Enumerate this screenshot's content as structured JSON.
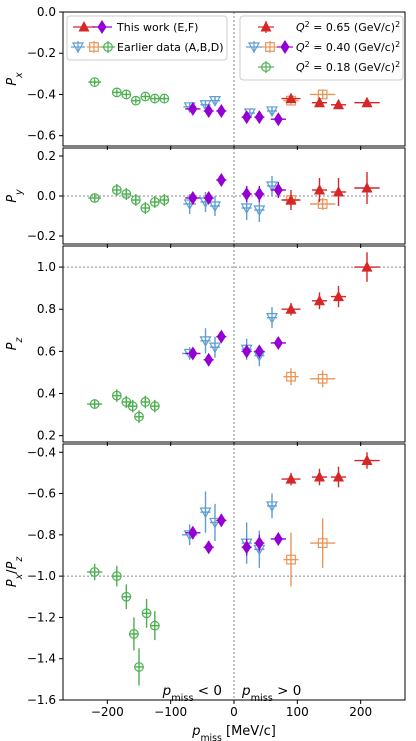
{
  "chart_data": {
    "type": "scatter",
    "shared_x": {
      "label": "p",
      "label_sub": "miss",
      "label_unit": " [MeV/c]",
      "lim": [
        -270,
        270
      ],
      "ticks": [
        -200,
        -100,
        0,
        100,
        200
      ],
      "tick_labels": [
        "−200",
        "−100",
        "0",
        "100",
        "200"
      ]
    },
    "colors": {
      "this_work": "#9400d3",
      "q065": "#d62728",
      "q040_blue": "#5f9ed1",
      "q040_orange": "#e8975a",
      "q018": "#4caf50",
      "guide": "#888888"
    },
    "legend_left": {
      "entries": [
        {
          "label": "This work (E,F)"
        },
        {
          "label": "Earlier data (A,B,D)"
        }
      ]
    },
    "legend_right": {
      "entries": [
        {
          "pre": "Q",
          "sup": "2",
          "post": " = 0.65 (GeV/c)",
          "sup2": "2"
        },
        {
          "pre": "Q",
          "sup": "2",
          "post": " = 0.40 (GeV/c)",
          "sup2": "2"
        },
        {
          "pre": "Q",
          "sup": "2",
          "post": " = 0.18 (GeV/c)",
          "sup2": "2"
        }
      ]
    },
    "annotations": {
      "left": {
        "pre": "p",
        "sub": "miss",
        "post": " < 0"
      },
      "right": {
        "pre": "p",
        "sub": "miss",
        "post": " > 0"
      }
    },
    "panels": [
      {
        "id": "px",
        "ylabel": "P",
        "ylabel_sub": "x",
        "ylim": [
          -0.65,
          0.0
        ],
        "yticks": [
          0.0,
          -0.2,
          -0.4,
          -0.6
        ],
        "ytick_labels": [
          "0.0",
          "−0.2",
          "−0.4",
          "−0.6"
        ],
        "hline": null,
        "series": [
          {
            "group": "q018",
            "marker": "circle",
            "points": [
              [
                -220,
                -0.34,
                10,
                0.01
              ],
              [
                -185,
                -0.39,
                6,
                0.01
              ],
              [
                -170,
                -0.4,
                6,
                0.01
              ],
              [
                -155,
                -0.43,
                6,
                0.01
              ],
              [
                -140,
                -0.41,
                6,
                0.01
              ],
              [
                -125,
                -0.42,
                6,
                0.01
              ],
              [
                -110,
                -0.42,
                6,
                0.01
              ]
            ]
          },
          {
            "group": "q040_blue",
            "marker": "tri_down",
            "points": [
              [
                -70,
                -0.46,
                10,
                0.02
              ],
              [
                -45,
                -0.45,
                8,
                0.02
              ],
              [
                -30,
                -0.43,
                8,
                0.02
              ],
              [
                25,
                -0.49,
                8,
                0.02
              ],
              [
                60,
                -0.48,
                8,
                0.02
              ]
            ]
          },
          {
            "group": "q040_orange",
            "marker": "square",
            "points": [
              [
                90,
                -0.43,
                12,
                0.02
              ],
              [
                140,
                -0.4,
                20,
                0.02
              ]
            ]
          },
          {
            "group": "q065",
            "marker": "tri_up",
            "points": [
              [
                90,
                -0.42,
                15,
                0.02
              ],
              [
                135,
                -0.44,
                12,
                0.02
              ],
              [
                165,
                -0.45,
                12,
                0.02
              ],
              [
                210,
                -0.44,
                20,
                0.02
              ]
            ]
          },
          {
            "group": "this_work",
            "marker": "diamond",
            "points": [
              [
                -65,
                -0.47,
                12,
                0.02
              ],
              [
                -40,
                -0.48,
                8,
                0.02
              ],
              [
                -20,
                -0.48,
                8,
                0.02
              ],
              [
                20,
                -0.51,
                8,
                0.02
              ],
              [
                40,
                -0.51,
                8,
                0.02
              ],
              [
                70,
                -0.52,
                12,
                0.02
              ]
            ]
          }
        ]
      },
      {
        "id": "py",
        "ylabel": "P",
        "ylabel_sub": "y",
        "ylim": [
          -0.24,
          0.24
        ],
        "yticks": [
          0.2,
          0.0,
          -0.2
        ],
        "ytick_labels": [
          "0.2",
          "0.0",
          "−0.2"
        ],
        "hline": 0.0,
        "series": [
          {
            "group": "q018",
            "marker": "circle",
            "points": [
              [
                -220,
                -0.01,
                10,
                0.02
              ],
              [
                -185,
                0.03,
                6,
                0.03
              ],
              [
                -170,
                0.01,
                6,
                0.03
              ],
              [
                -155,
                -0.02,
                6,
                0.03
              ],
              [
                -140,
                -0.06,
                6,
                0.03
              ],
              [
                -125,
                -0.03,
                6,
                0.03
              ],
              [
                -110,
                -0.02,
                6,
                0.03
              ]
            ]
          },
          {
            "group": "q040_blue",
            "marker": "tri_down",
            "points": [
              [
                -70,
                -0.04,
                10,
                0.05
              ],
              [
                -45,
                -0.03,
                8,
                0.05
              ],
              [
                -30,
                -0.05,
                8,
                0.05
              ],
              [
                20,
                -0.06,
                8,
                0.06
              ],
              [
                40,
                -0.07,
                8,
                0.06
              ],
              [
                60,
                0.05,
                8,
                0.05
              ]
            ]
          },
          {
            "group": "q040_orange",
            "marker": "square",
            "points": [
              [
                90,
                -0.02,
                12,
                0.03
              ],
              [
                140,
                -0.04,
                20,
                0.03
              ]
            ]
          },
          {
            "group": "q065",
            "marker": "tri_up",
            "points": [
              [
                90,
                -0.02,
                15,
                0.05
              ],
              [
                135,
                0.03,
                12,
                0.06
              ],
              [
                165,
                0.02,
                12,
                0.07
              ],
              [
                210,
                0.04,
                20,
                0.08
              ]
            ]
          },
          {
            "group": "this_work",
            "marker": "diamond",
            "points": [
              [
                -65,
                -0.01,
                12,
                0.03
              ],
              [
                -40,
                -0.01,
                8,
                0.03
              ],
              [
                -20,
                0.08,
                8,
                0.03
              ],
              [
                20,
                0.01,
                8,
                0.04
              ],
              [
                40,
                0.01,
                8,
                0.04
              ],
              [
                70,
                0.03,
                12,
                0.04
              ]
            ]
          }
        ]
      },
      {
        "id": "pz",
        "ylabel": "P",
        "ylabel_sub": "z",
        "ylim": [
          0.17,
          1.1
        ],
        "yticks": [
          1.0,
          0.8,
          0.6,
          0.4,
          0.2
        ],
        "ytick_labels": [
          "1.0",
          "0.8",
          "0.6",
          "0.4",
          "0.2"
        ],
        "hline": 1.0,
        "series": [
          {
            "group": "q018",
            "marker": "circle",
            "points": [
              [
                -220,
                0.35,
                12,
                0.02
              ],
              [
                -185,
                0.39,
                6,
                0.03
              ],
              [
                -170,
                0.36,
                6,
                0.03
              ],
              [
                -160,
                0.34,
                6,
                0.03
              ],
              [
                -150,
                0.29,
                6,
                0.03
              ],
              [
                -140,
                0.36,
                6,
                0.03
              ],
              [
                -125,
                0.34,
                6,
                0.03
              ]
            ]
          },
          {
            "group": "q040_blue",
            "marker": "tri_down",
            "points": [
              [
                -70,
                0.59,
                12,
                0.03
              ],
              [
                -45,
                0.65,
                8,
                0.06
              ],
              [
                -30,
                0.62,
                8,
                0.05
              ],
              [
                20,
                0.61,
                8,
                0.05
              ],
              [
                40,
                0.58,
                8,
                0.05
              ],
              [
                60,
                0.76,
                8,
                0.05
              ]
            ]
          },
          {
            "group": "q040_orange",
            "marker": "square",
            "points": [
              [
                90,
                0.48,
                12,
                0.04
              ],
              [
                140,
                0.47,
                20,
                0.04
              ]
            ]
          },
          {
            "group": "q065",
            "marker": "tri_up",
            "points": [
              [
                90,
                0.8,
                15,
                0.03
              ],
              [
                135,
                0.84,
                12,
                0.04
              ],
              [
                165,
                0.86,
                12,
                0.05
              ],
              [
                210,
                1.0,
                20,
                0.07
              ]
            ]
          },
          {
            "group": "this_work",
            "marker": "diamond",
            "points": [
              [
                -65,
                0.59,
                12,
                0.02
              ],
              [
                -40,
                0.56,
                8,
                0.02
              ],
              [
                -20,
                0.67,
                8,
                0.02
              ],
              [
                20,
                0.6,
                8,
                0.02
              ],
              [
                40,
                0.6,
                8,
                0.02
              ],
              [
                70,
                0.64,
                12,
                0.02
              ]
            ]
          }
        ]
      },
      {
        "id": "pxpz",
        "ylabel": "P",
        "ylabel_sub": "x",
        "ylabel2": "P",
        "ylabel2_sub": "z",
        "ylim": [
          -1.6,
          -0.36
        ],
        "yticks": [
          -0.4,
          -0.6,
          -0.8,
          -1.0,
          -1.2,
          -1.4,
          -1.6
        ],
        "ytick_labels": [
          "−0.4",
          "−0.6",
          "−0.8",
          "−1.0",
          "−1.2",
          "−1.4",
          "−1.6"
        ],
        "hline": -1.0,
        "series": [
          {
            "group": "q018",
            "marker": "circle",
            "points": [
              [
                -220,
                -0.98,
                12,
                0.04
              ],
              [
                -185,
                -1.0,
                6,
                0.05
              ],
              [
                -170,
                -1.1,
                6,
                0.06
              ],
              [
                -158,
                -1.28,
                6,
                0.08
              ],
              [
                -150,
                -1.44,
                6,
                0.09
              ],
              [
                -138,
                -1.18,
                6,
                0.07
              ],
              [
                -125,
                -1.24,
                6,
                0.07
              ]
            ]
          },
          {
            "group": "q040_blue",
            "marker": "tri_down",
            "points": [
              [
                -70,
                -0.8,
                12,
                0.05
              ],
              [
                -45,
                -0.69,
                8,
                0.1
              ],
              [
                -30,
                -0.74,
                8,
                0.09
              ],
              [
                20,
                -0.84,
                8,
                0.1
              ],
              [
                40,
                -0.87,
                8,
                0.09
              ],
              [
                60,
                -0.66,
                8,
                0.06
              ]
            ]
          },
          {
            "group": "q040_orange",
            "marker": "square",
            "points": [
              [
                90,
                -0.92,
                12,
                0.13
              ],
              [
                140,
                -0.84,
                20,
                0.12
              ]
            ]
          },
          {
            "group": "q065",
            "marker": "tri_up",
            "points": [
              [
                90,
                -0.53,
                15,
                0.03
              ],
              [
                135,
                -0.52,
                12,
                0.04
              ],
              [
                165,
                -0.52,
                12,
                0.05
              ],
              [
                210,
                -0.44,
                20,
                0.04
              ]
            ]
          },
          {
            "group": "this_work",
            "marker": "diamond",
            "points": [
              [
                -65,
                -0.79,
                12,
                0.03
              ],
              [
                -40,
                -0.86,
                8,
                0.03
              ],
              [
                -20,
                -0.73,
                8,
                0.03
              ],
              [
                20,
                -0.86,
                8,
                0.04
              ],
              [
                40,
                -0.84,
                8,
                0.04
              ],
              [
                70,
                -0.82,
                12,
                0.03
              ]
            ]
          }
        ]
      }
    ]
  }
}
